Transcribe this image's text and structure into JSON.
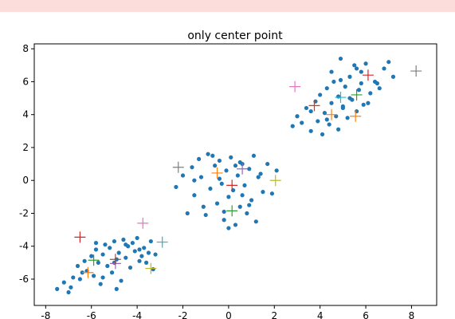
{
  "chart_data": {
    "type": "scatter",
    "title": "only center point",
    "xlim": [
      -8.5,
      9.1
    ],
    "ylim": [
      -7.6,
      8.3
    ],
    "xticks": [
      -8,
      -6,
      -4,
      -2,
      0,
      2,
      4,
      6,
      8
    ],
    "yticks": [
      -6,
      -4,
      -2,
      0,
      2,
      4,
      6,
      8
    ],
    "series": [
      {
        "color": "#1f77b4",
        "marker": "o",
        "x": [
          -7.5,
          -7.2,
          -7.0,
          -6.8,
          -6.6,
          -6.5,
          -6.3,
          -6.2,
          -6.0,
          -5.9,
          -5.8,
          -5.7,
          -5.6,
          -5.5,
          -5.4,
          -5.3,
          -5.2,
          -5.1,
          -5.0,
          -4.9,
          -4.8,
          -4.7,
          -4.6,
          -4.5,
          -4.4,
          -4.3,
          -4.2,
          -4.1,
          -4.0,
          -3.9,
          -3.8,
          -3.7,
          -3.6,
          -3.5,
          -3.4,
          -3.3,
          -3.2,
          -6.9,
          -6.4,
          -5.5,
          -4.9,
          -4.5,
          -3.9,
          -5.8,
          -5.0,
          -2.3,
          -2.0,
          -1.8,
          -1.6,
          -1.5,
          -1.3,
          -1.2,
          -1.0,
          -0.9,
          -0.8,
          -0.6,
          -0.5,
          -0.4,
          -0.3,
          -0.2,
          -0.1,
          0.0,
          0.1,
          0.2,
          0.3,
          0.4,
          0.5,
          0.6,
          0.7,
          0.8,
          0.9,
          1.0,
          1.1,
          1.3,
          1.5,
          1.7,
          1.9,
          2.1,
          -1.1,
          -0.7,
          -0.2,
          0.3,
          0.6,
          1.2,
          -1.5,
          0.0,
          0.9,
          -0.4,
          0.5,
          1.4,
          2.8,
          3.0,
          3.2,
          3.4,
          3.6,
          3.8,
          3.9,
          4.0,
          4.1,
          4.2,
          4.3,
          4.4,
          4.5,
          4.6,
          4.7,
          4.8,
          4.9,
          5.0,
          5.1,
          5.2,
          5.3,
          5.4,
          5.5,
          5.6,
          5.7,
          5.8,
          5.9,
          6.0,
          6.2,
          6.4,
          6.6,
          6.8,
          7.0,
          7.2,
          4.5,
          4.9,
          5.3,
          5.8,
          6.1,
          3.6,
          4.3,
          5.0,
          5.6,
          6.5,
          4.8
        ],
        "y": [
          -6.6,
          -6.2,
          -6.8,
          -5.9,
          -5.2,
          -6.0,
          -4.9,
          -5.5,
          -4.6,
          -5.8,
          -4.2,
          -5.0,
          -6.3,
          -4.5,
          -3.9,
          -5.2,
          -4.1,
          -5.6,
          -3.7,
          -4.8,
          -4.4,
          -6.1,
          -3.6,
          -4.7,
          -4.0,
          -5.3,
          -3.8,
          -4.3,
          -3.5,
          -4.9,
          -4.6,
          -4.1,
          -5.0,
          -4.4,
          -3.7,
          -5.4,
          -4.5,
          -6.5,
          -5.6,
          -5.9,
          -6.6,
          -3.9,
          -4.2,
          -3.8,
          -5.0,
          -0.4,
          0.3,
          -2.0,
          0.8,
          -0.9,
          1.3,
          0.2,
          -2.1,
          1.6,
          -0.5,
          0.9,
          -1.4,
          1.2,
          -0.2,
          -2.4,
          0.6,
          -1.0,
          1.4,
          -0.6,
          -2.7,
          0.3,
          -1.6,
          1.0,
          -0.3,
          -2.0,
          0.7,
          -1.2,
          1.5,
          0.2,
          -0.7,
          1.0,
          -0.8,
          0.6,
          -1.6,
          1.5,
          -1.9,
          0.9,
          -0.9,
          -2.5,
          0.0,
          -2.9,
          -1.5,
          0.1,
          1.1,
          0.4,
          3.3,
          3.9,
          3.5,
          4.4,
          3.0,
          4.8,
          3.6,
          5.2,
          2.8,
          4.1,
          5.6,
          3.4,
          4.7,
          6.0,
          3.9,
          5.1,
          7.4,
          4.4,
          5.7,
          3.8,
          6.3,
          4.9,
          7.0,
          4.2,
          5.5,
          6.6,
          4.6,
          7.1,
          5.3,
          6.0,
          5.6,
          6.8,
          7.2,
          6.3,
          6.6,
          6.1,
          5.0,
          5.9,
          4.7,
          4.2,
          3.7,
          4.5,
          6.8,
          5.9,
          3.1
        ]
      },
      {
        "color": "#7f7f7f",
        "marker": "+",
        "x": [
          -2.2,
          8.2
        ],
        "y": [
          0.8,
          6.65
        ]
      },
      {
        "color": "#ff7f0e",
        "marker": "+",
        "x": [
          -0.5,
          4.5,
          5.55,
          -6.15
        ],
        "y": [
          0.45,
          4.0,
          3.9,
          -5.6
        ]
      },
      {
        "color": "#9467bd",
        "marker": "+",
        "x": [
          0.6,
          -4.95
        ],
        "y": [
          0.7,
          -5.05
        ]
      },
      {
        "color": "#d62728",
        "marker": "+",
        "x": [
          0.15,
          6.1,
          -6.5
        ],
        "y": [
          -0.3,
          6.4,
          -3.45
        ]
      },
      {
        "color": "#2ca02c",
        "marker": "+",
        "x": [
          0.15,
          5.6,
          -5.9
        ],
        "y": [
          -1.85,
          5.2,
          -4.85
        ]
      },
      {
        "color": "#bcbd22",
        "marker": "+",
        "x": [
          2.05,
          -3.4
        ],
        "y": [
          0.0,
          -5.35
        ]
      },
      {
        "color": "#e377c2",
        "marker": "+",
        "x": [
          2.9,
          -3.75
        ],
        "y": [
          5.7,
          -2.6
        ]
      },
      {
        "color": "#8c564b",
        "marker": "+",
        "x": [
          3.75,
          -4.95
        ],
        "y": [
          4.55,
          -4.8
        ]
      },
      {
        "color": "#17becf",
        "marker": "+",
        "x": [
          4.9,
          -2.9
        ],
        "y": [
          5.05,
          -3.75
        ]
      }
    ]
  }
}
